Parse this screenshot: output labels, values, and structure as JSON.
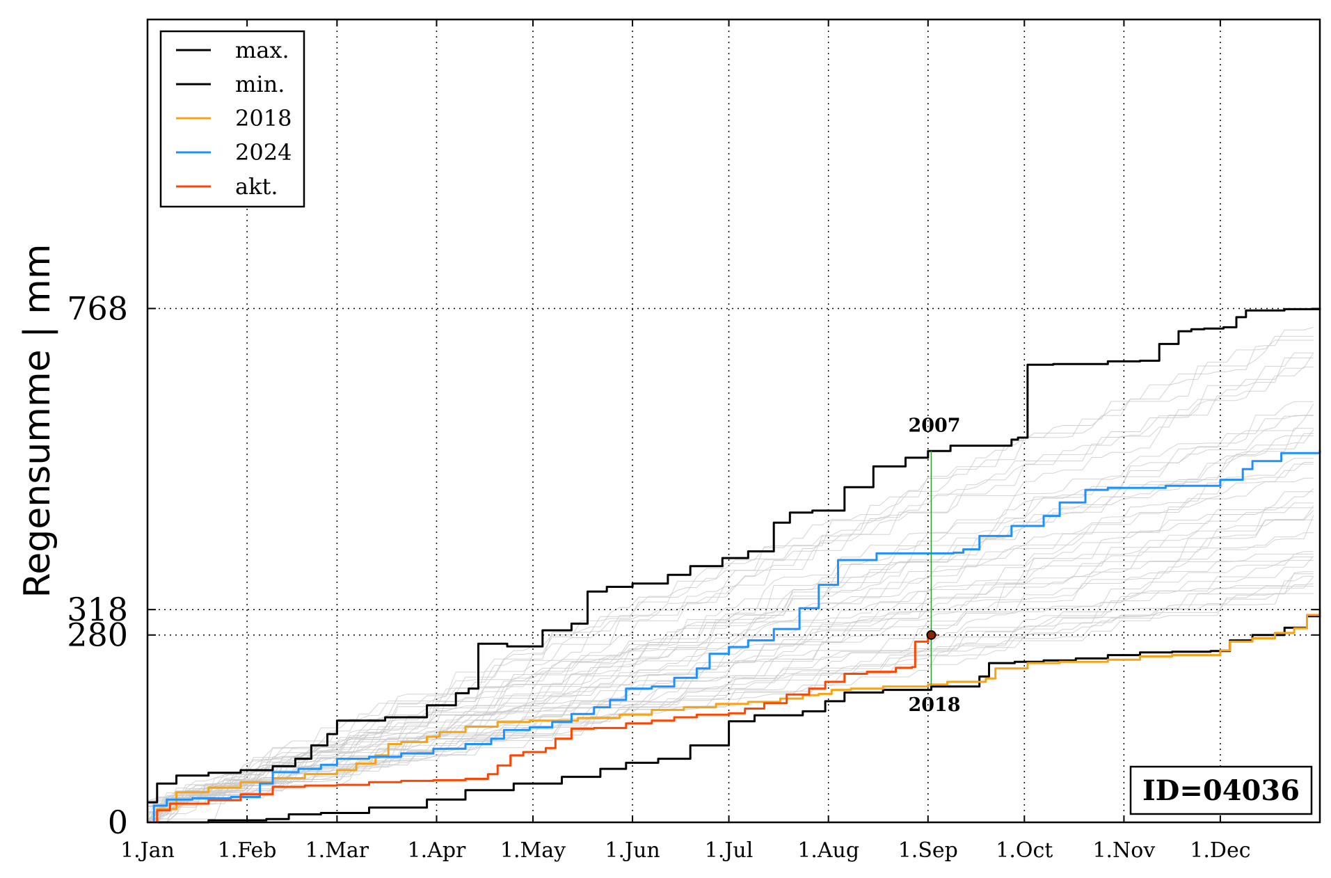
{
  "chart_data": {
    "type": "line",
    "ylabel": "Regensumme | mm",
    "xlabel": "",
    "title": "",
    "x_unit": "day of year",
    "xlim": [
      1,
      366
    ],
    "ylim": [
      0,
      1200
    ],
    "yticks": [
      {
        "value": 0,
        "label": "0"
      },
      {
        "value": 280,
        "label": "280"
      },
      {
        "value": 318,
        "label": "318"
      },
      {
        "value": 768,
        "label": "768"
      }
    ],
    "xticks": [
      {
        "day": 1,
        "label": "1.Jan"
      },
      {
        "day": 32,
        "label": "1.Feb"
      },
      {
        "day": 60,
        "label": "1.Mar"
      },
      {
        "day": 91,
        "label": "1.Apr"
      },
      {
        "day": 121,
        "label": "1.May"
      },
      {
        "day": 152,
        "label": "1.Jun"
      },
      {
        "day": 182,
        "label": "1.Jul"
      },
      {
        "day": 213,
        "label": "1.Aug"
      },
      {
        "day": 244,
        "label": "1.Sep"
      },
      {
        "day": 274,
        "label": "1.Oct"
      },
      {
        "day": 305,
        "label": "1.Nov"
      },
      {
        "day": 335,
        "label": "1.Dec"
      }
    ],
    "grid": "dotted",
    "legend_position": "top-left",
    "legend": [
      {
        "label": "max.",
        "color": "#000000"
      },
      {
        "label": "min.",
        "color": "#000000"
      },
      {
        "label": "2018",
        "color": "#f5a31a"
      },
      {
        "label": "2024",
        "color": "#1e90ff"
      },
      {
        "label": "akt.",
        "color": "#ff4500"
      }
    ],
    "series": [
      {
        "name": "max.",
        "color": "#000000",
        "width": 3,
        "points": [
          [
            1,
            30
          ],
          [
            4,
            58
          ],
          [
            10,
            70
          ],
          [
            20,
            74
          ],
          [
            30,
            78
          ],
          [
            40,
            84
          ],
          [
            47,
            95
          ],
          [
            52,
            115
          ],
          [
            57,
            132
          ],
          [
            60,
            152
          ],
          [
            75,
            157
          ],
          [
            88,
            175
          ],
          [
            97,
            193
          ],
          [
            101,
            200
          ],
          [
            104,
            267
          ],
          [
            113,
            263
          ],
          [
            124,
            287
          ],
          [
            133,
            297
          ],
          [
            138,
            345
          ],
          [
            144,
            352
          ],
          [
            152,
            357
          ],
          [
            163,
            370
          ],
          [
            170,
            383
          ],
          [
            180,
            395
          ],
          [
            188,
            405
          ],
          [
            196,
            448
          ],
          [
            201,
            463
          ],
          [
            208,
            466
          ],
          [
            218,
            501
          ],
          [
            227,
            532
          ],
          [
            237,
            545
          ],
          [
            244,
            555
          ],
          [
            251,
            563
          ],
          [
            270,
            572
          ],
          [
            272,
            575
          ],
          [
            275,
            684
          ],
          [
            283,
            685
          ],
          [
            300,
            689
          ],
          [
            310,
            690
          ],
          [
            316,
            715
          ],
          [
            322,
            734
          ],
          [
            326,
            737
          ],
          [
            330,
            738
          ],
          [
            336,
            740
          ],
          [
            340,
            755
          ],
          [
            343,
            765
          ],
          [
            355,
            767
          ],
          [
            366,
            768
          ]
        ]
      },
      {
        "name": "min.",
        "color": "#000000",
        "width": 3,
        "points": [
          [
            1,
            0
          ],
          [
            20,
            3
          ],
          [
            38,
            5
          ],
          [
            45,
            12
          ],
          [
            55,
            14
          ],
          [
            70,
            22
          ],
          [
            88,
            34
          ],
          [
            100,
            48
          ],
          [
            115,
            58
          ],
          [
            130,
            68
          ],
          [
            142,
            80
          ],
          [
            150,
            89
          ],
          [
            160,
            95
          ],
          [
            170,
            115
          ],
          [
            182,
            151
          ],
          [
            190,
            160
          ],
          [
            205,
            166
          ],
          [
            212,
            181
          ],
          [
            218,
            194
          ],
          [
            230,
            198
          ],
          [
            245,
            203
          ],
          [
            260,
            218
          ],
          [
            263,
            238
          ],
          [
            271,
            240
          ],
          [
            280,
            242
          ],
          [
            290,
            245
          ],
          [
            300,
            250
          ],
          [
            310,
            254
          ],
          [
            320,
            255
          ],
          [
            332,
            256
          ],
          [
            338,
            272
          ],
          [
            345,
            280
          ],
          [
            355,
            291
          ],
          [
            362,
            308
          ],
          [
            366,
            318
          ]
        ]
      },
      {
        "name": "2018",
        "color": "#f5a31a",
        "width": 3,
        "points": [
          [
            1,
            0
          ],
          [
            4,
            20
          ],
          [
            10,
            45
          ],
          [
            20,
            52
          ],
          [
            30,
            60
          ],
          [
            40,
            66
          ],
          [
            50,
            72
          ],
          [
            60,
            78
          ],
          [
            66,
            88
          ],
          [
            72,
            100
          ],
          [
            76,
            117
          ],
          [
            80,
            120
          ],
          [
            88,
            128
          ],
          [
            92,
            135
          ],
          [
            100,
            143
          ],
          [
            110,
            150
          ],
          [
            120,
            152
          ],
          [
            135,
            156
          ],
          [
            148,
            161
          ],
          [
            158,
            168
          ],
          [
            168,
            172
          ],
          [
            178,
            177
          ],
          [
            188,
            180
          ],
          [
            198,
            185
          ],
          [
            205,
            190
          ],
          [
            210,
            192
          ],
          [
            214,
            198
          ],
          [
            220,
            200
          ],
          [
            230,
            203
          ],
          [
            244,
            206
          ],
          [
            250,
            210
          ],
          [
            262,
            215
          ],
          [
            265,
            230
          ],
          [
            275,
            238
          ],
          [
            285,
            240
          ],
          [
            300,
            243
          ],
          [
            310,
            248
          ],
          [
            320,
            250
          ],
          [
            335,
            257
          ],
          [
            338,
            270
          ],
          [
            345,
            275
          ],
          [
            352,
            283
          ],
          [
            358,
            290
          ],
          [
            362,
            310
          ],
          [
            366,
            318
          ]
        ]
      },
      {
        "name": "2024",
        "color": "#1e90ff",
        "width": 3,
        "points": [
          [
            1,
            0
          ],
          [
            3,
            25
          ],
          [
            7,
            34
          ],
          [
            15,
            36
          ],
          [
            27,
            38
          ],
          [
            36,
            58
          ],
          [
            40,
            75
          ],
          [
            48,
            80
          ],
          [
            55,
            86
          ],
          [
            60,
            95
          ],
          [
            70,
            98
          ],
          [
            80,
            103
          ],
          [
            90,
            110
          ],
          [
            100,
            117
          ],
          [
            108,
            125
          ],
          [
            112,
            138
          ],
          [
            120,
            142
          ],
          [
            127,
            150
          ],
          [
            133,
            162
          ],
          [
            140,
            172
          ],
          [
            145,
            183
          ],
          [
            150,
            200
          ],
          [
            158,
            203
          ],
          [
            165,
            216
          ],
          [
            172,
            230
          ],
          [
            176,
            252
          ],
          [
            182,
            262
          ],
          [
            188,
            272
          ],
          [
            196,
            289
          ],
          [
            204,
            320
          ],
          [
            210,
            355
          ],
          [
            216,
            392
          ],
          [
            228,
            402
          ],
          [
            252,
            403
          ],
          [
            255,
            408
          ],
          [
            260,
            428
          ],
          [
            270,
            443
          ],
          [
            280,
            458
          ],
          [
            285,
            478
          ],
          [
            293,
            497
          ],
          [
            300,
            500
          ],
          [
            318,
            503
          ],
          [
            335,
            512
          ],
          [
            342,
            528
          ],
          [
            345,
            540
          ],
          [
            354,
            552
          ],
          [
            366,
            556
          ]
        ]
      },
      {
        "name": "akt.",
        "color": "#ff4500",
        "width": 3,
        "points": [
          [
            1,
            0
          ],
          [
            4,
            18
          ],
          [
            8,
            28
          ],
          [
            20,
            33
          ],
          [
            30,
            42
          ],
          [
            40,
            53
          ],
          [
            50,
            55
          ],
          [
            60,
            56
          ],
          [
            70,
            60
          ],
          [
            80,
            62
          ],
          [
            90,
            63
          ],
          [
            100,
            65
          ],
          [
            107,
            72
          ],
          [
            110,
            85
          ],
          [
            114,
            100
          ],
          [
            118,
            105
          ],
          [
            125,
            111
          ],
          [
            128,
            125
          ],
          [
            133,
            140
          ],
          [
            140,
            141
          ],
          [
            150,
            148
          ],
          [
            158,
            152
          ],
          [
            165,
            157
          ],
          [
            172,
            161
          ],
          [
            182,
            163
          ],
          [
            187,
            170
          ],
          [
            193,
            178
          ],
          [
            200,
            191
          ],
          [
            207,
            200
          ],
          [
            212,
            210
          ],
          [
            218,
            222
          ],
          [
            225,
            225
          ],
          [
            234,
            231
          ],
          [
            239,
            232
          ],
          [
            240,
            270
          ],
          [
            244,
            278
          ],
          [
            245,
            280
          ],
          [
            247,
            280
          ]
        ]
      }
    ],
    "background_years": {
      "count": 40,
      "color": "#c8c8c8",
      "description_hidden": true
    },
    "marker": {
      "day": 245,
      "value": 280
    },
    "annotations": [
      {
        "label": "2007",
        "day": 246,
        "value": 555,
        "position": "above"
      },
      {
        "label": "2018",
        "day": 246,
        "value": 206,
        "position": "below"
      }
    ],
    "hlines": [
      280,
      318,
      768
    ],
    "id_label": "ID=04036"
  }
}
